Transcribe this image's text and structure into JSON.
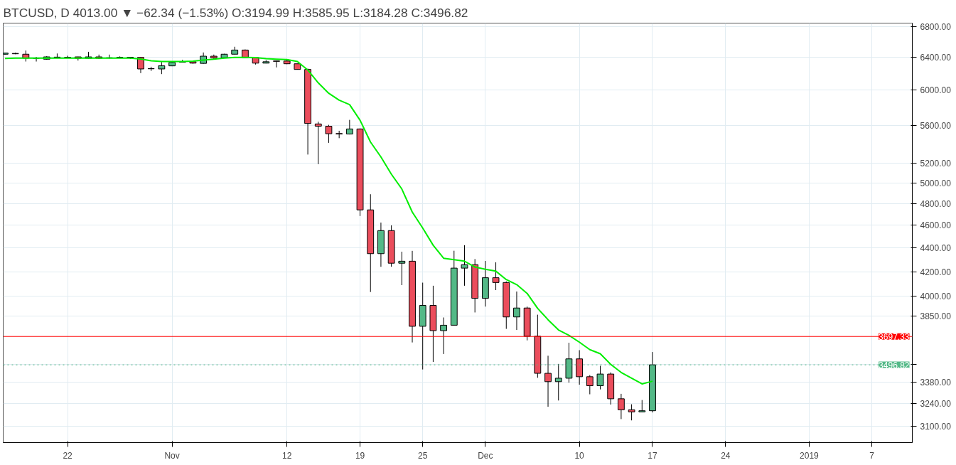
{
  "chart_data": {
    "type": "candlestick",
    "title": "BTCUSD, D  4013.00 ▼ −62.34 (−1.53%)  O:3194.99  H:3585.95  L:3184.28  C:3496.82",
    "x": [
      "2018-10-16",
      "2018-10-17",
      "2018-10-18",
      "2018-10-19",
      "2018-10-20",
      "2018-10-21",
      "2018-10-22",
      "2018-10-23",
      "2018-10-24",
      "2018-10-25",
      "2018-10-26",
      "2018-10-27",
      "2018-10-28",
      "2018-10-29",
      "2018-10-30",
      "2018-10-31",
      "2018-11-01",
      "2018-11-02",
      "2018-11-03",
      "2018-11-04",
      "2018-11-05",
      "2018-11-06",
      "2018-11-07",
      "2018-11-08",
      "2018-11-09",
      "2018-11-10",
      "2018-11-11",
      "2018-11-12",
      "2018-11-13",
      "2018-11-14",
      "2018-11-15",
      "2018-11-16",
      "2018-11-17",
      "2018-11-18",
      "2018-11-19",
      "2018-11-20",
      "2018-11-21",
      "2018-11-22",
      "2018-11-23",
      "2018-11-24",
      "2018-11-25",
      "2018-11-26",
      "2018-11-27",
      "2018-11-28",
      "2018-11-29",
      "2018-11-30",
      "2018-12-01",
      "2018-12-02",
      "2018-12-03",
      "2018-12-04",
      "2018-12-05",
      "2018-12-06",
      "2018-12-07",
      "2018-12-08",
      "2018-12-09",
      "2018-12-10",
      "2018-12-11",
      "2018-12-12",
      "2018-12-13",
      "2018-12-14",
      "2018-12-15",
      "2018-12-16",
      "2018-12-17"
    ],
    "ohlc": [
      [
        6440,
        6460,
        6435,
        6455
      ],
      [
        6450,
        6460,
        6440,
        6445
      ],
      [
        6440,
        6487,
        6348,
        6390
      ],
      [
        6392,
        6406,
        6348,
        6388
      ],
      [
        6377,
        6415,
        6370,
        6406
      ],
      [
        6400,
        6449,
        6390,
        6403
      ],
      [
        6402,
        6420,
        6390,
        6400
      ],
      [
        6406,
        6408,
        6360,
        6389
      ],
      [
        6389,
        6470,
        6385,
        6406
      ],
      [
        6406,
        6435,
        6380,
        6389
      ],
      [
        6395,
        6435,
        6385,
        6392
      ],
      [
        6400,
        6412,
        6390,
        6402
      ],
      [
        6402,
        6405,
        6380,
        6398
      ],
      [
        6400,
        6405,
        6205,
        6256
      ],
      [
        6260,
        6283,
        6232,
        6258
      ],
      [
        6256,
        6342,
        6193,
        6296
      ],
      [
        6294,
        6345,
        6290,
        6337
      ],
      [
        6340,
        6370,
        6335,
        6343
      ],
      [
        6345,
        6347,
        6320,
        6328
      ],
      [
        6325,
        6462,
        6320,
        6415
      ],
      [
        6415,
        6435,
        6380,
        6395
      ],
      [
        6395,
        6445,
        6390,
        6440
      ],
      [
        6440,
        6535,
        6438,
        6493
      ],
      [
        6493,
        6500,
        6390,
        6395
      ],
      [
        6397,
        6400,
        6310,
        6328
      ],
      [
        6328,
        6365,
        6325,
        6345
      ],
      [
        6355,
        6358,
        6275,
        6350
      ],
      [
        6354,
        6375,
        6315,
        6320
      ],
      [
        6320,
        6320,
        6248,
        6250
      ],
      [
        6250,
        6260,
        5287,
        5620
      ],
      [
        5615,
        5640,
        5188,
        5590
      ],
      [
        5590,
        5605,
        5410,
        5508
      ],
      [
        5510,
        5540,
        5460,
        5505
      ],
      [
        5505,
        5660,
        5500,
        5560
      ],
      [
        5560,
        5565,
        4685,
        4742
      ],
      [
        4742,
        4890,
        4035,
        4351
      ],
      [
        4351,
        4625,
        4240,
        4553
      ],
      [
        4553,
        4600,
        4241,
        4270
      ],
      [
        4270,
        4368,
        4090,
        4287
      ],
      [
        4287,
        4375,
        3654,
        3772
      ],
      [
        3772,
        4110,
        3465,
        3930
      ],
      [
        3930,
        4085,
        3517,
        3740
      ],
      [
        3740,
        3838,
        3572,
        3780
      ],
      [
        3780,
        4376,
        3780,
        4229
      ],
      [
        4229,
        4424,
        4085,
        4258
      ],
      [
        4258,
        4305,
        3876,
        3985
      ],
      [
        3985,
        4289,
        3921,
        4150
      ],
      [
        4150,
        4278,
        4050,
        4111
      ],
      [
        4111,
        4120,
        3753,
        3842
      ],
      [
        3842,
        4039,
        3745,
        3910
      ],
      [
        3910,
        3921,
        3669,
        3699
      ],
      [
        3699,
        3859,
        3409,
        3439
      ],
      [
        3439,
        3560,
        3220,
        3383
      ],
      [
        3383,
        3503,
        3260,
        3406
      ],
      [
        3406,
        3652,
        3376,
        3538
      ],
      [
        3538,
        3599,
        3363,
        3416
      ],
      [
        3416,
        3427,
        3300,
        3356
      ],
      [
        3356,
        3490,
        3332,
        3434
      ],
      [
        3434,
        3445,
        3234,
        3271
      ],
      [
        3271,
        3303,
        3143,
        3201
      ],
      [
        3201,
        3236,
        3135,
        3188
      ],
      [
        3188,
        3263,
        3188,
        3194.99
      ],
      [
        3194.99,
        3585.95,
        3184.28,
        3496.82
      ]
    ],
    "colors": [
      "#53b987",
      "#eb4d5c",
      "#eb4d5c",
      "#eb4d5c",
      "#53b987",
      "#53b987",
      "#eb4d5c",
      "#eb4d5c",
      "#53b987",
      "#eb4d5c",
      "#eb4d5c",
      "#53b987",
      "#eb4d5c",
      "#eb4d5c",
      "#eb4d5c",
      "#53b987",
      "#53b987",
      "#53b987",
      "#eb4d5c",
      "#53b987",
      "#eb4d5c",
      "#53b987",
      "#53b987",
      "#eb4d5c",
      "#eb4d5c",
      "#53b987",
      "#eb4d5c",
      "#eb4d5c",
      "#eb4d5c",
      "#eb4d5c",
      "#eb4d5c",
      "#eb4d5c",
      "#eb4d5c",
      "#53b987",
      "#eb4d5c",
      "#eb4d5c",
      "#53b987",
      "#eb4d5c",
      "#53b987",
      "#eb4d5c",
      "#53b987",
      "#eb4d5c",
      "#53b987",
      "#53b987",
      "#53b987",
      "#eb4d5c",
      "#53b987",
      "#eb4d5c",
      "#eb4d5c",
      "#53b987",
      "#eb4d5c",
      "#eb4d5c",
      "#eb4d5c",
      "#53b987",
      "#53b987",
      "#eb4d5c",
      "#eb4d5c",
      "#53b987",
      "#eb4d5c",
      "#eb4d5c",
      "#eb4d5c",
      "#53b987",
      "#53b987"
    ],
    "series": [
      {
        "type": "line",
        "color": "#00ee00",
        "values": [
          6385,
          6390,
          6390,
          6390,
          6390,
          6390,
          6390,
          6390,
          6390,
          6390,
          6390,
          6390,
          6390,
          6380,
          6357,
          6348,
          6348,
          6348,
          6352,
          6365,
          6377,
          6391,
          6400,
          6400,
          6398,
          6383,
          6378,
          6372,
          6348,
          6243,
          6087,
          5964,
          5884,
          5832,
          5656,
          5419,
          5262,
          5087,
          4941,
          4722,
          4576,
          4424,
          4312,
          4300,
          4287,
          4238,
          4219,
          4204,
          4135,
          4094,
          4024,
          3908,
          3821,
          3745,
          3706,
          3656,
          3603,
          3574,
          3500,
          3445,
          3406,
          3368,
          3386
        ]
      }
    ],
    "xlim": [
      "2018-10-15T20:00",
      "2019-01-10T21:00"
    ],
    "xticks": [
      {
        "value": "2018-10-22",
        "label": "22"
      },
      {
        "value": "2018-11-01",
        "label": "Nov"
      },
      {
        "value": "2018-11-12",
        "label": "12"
      },
      {
        "value": "2018-11-19",
        "label": "19"
      },
      {
        "value": "2018-11-25",
        "label": "25"
      },
      {
        "value": "2018-12-01",
        "label": "Dec"
      },
      {
        "value": "2018-12-10",
        "label": "10"
      },
      {
        "value": "2018-12-17",
        "label": "17"
      },
      {
        "value": "2018-12-24",
        "label": "24"
      },
      {
        "value": "2019-01-01",
        "label": "2019"
      },
      {
        "value": "2019-01-07",
        "label": "7"
      }
    ],
    "ylim": [
      3001,
      6846
    ],
    "log": true,
    "yticks": [
      {
        "value": 3100,
        "label": "3100.00"
      },
      {
        "value": 3240,
        "label": "3240.00"
      },
      {
        "value": 3380,
        "label": "3380.00"
      },
      {
        "value": 3500,
        "label": null
      },
      {
        "value": 3850,
        "label": "3850.00"
      },
      {
        "value": 4000,
        "label": "4000.00"
      },
      {
        "value": 4200,
        "label": "4200.00"
      },
      {
        "value": 4400,
        "label": "4400.00"
      },
      {
        "value": 4600,
        "label": "4600.00"
      },
      {
        "value": 4800,
        "label": "4800.00"
      },
      {
        "value": 5000,
        "label": "5000.00"
      },
      {
        "value": 5200,
        "label": "5200.00"
      },
      {
        "value": 5600,
        "label": "5600.00"
      },
      {
        "value": 6000,
        "label": "6000.00"
      },
      {
        "value": 6400,
        "label": "6400.00"
      },
      {
        "value": 6800,
        "label": "6800.00"
      }
    ],
    "ref_lines": [
      {
        "axis": "y",
        "value": 3697.33,
        "label": "3697.33",
        "color": "#ff0000",
        "line_style": "solid"
      },
      {
        "axis": "y",
        "value": 3496.82,
        "label": "3496.82",
        "color": "#53b987",
        "line_style": "dotted"
      }
    ],
    "grid": true
  }
}
